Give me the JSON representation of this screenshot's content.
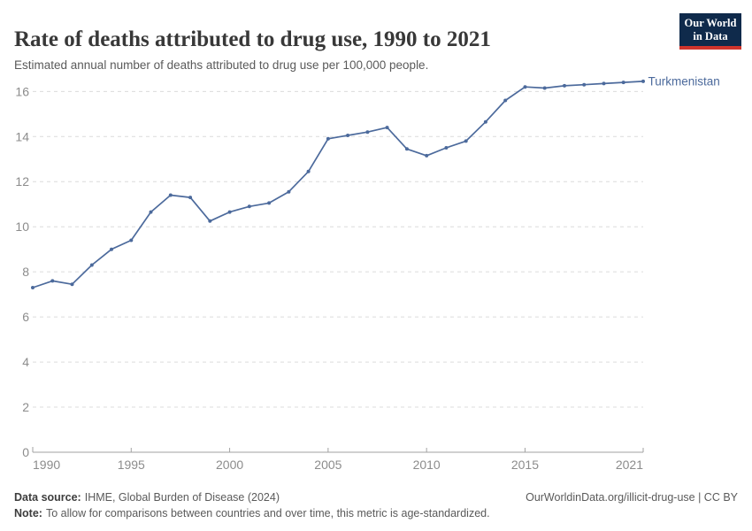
{
  "header": {
    "title": "Rate of deaths attributed to drug use, 1990 to 2021",
    "subtitle": "Estimated annual number of deaths attributed to drug use per 100,000 people.",
    "logo_line1": "Our World",
    "logo_line2": "in Data"
  },
  "chart_data": {
    "type": "line",
    "title": "Rate of deaths attributed to drug use, 1990 to 2021",
    "ylabel": "Deaths per 100,000 people",
    "xlim": [
      1990,
      2021
    ],
    "ylim": [
      0,
      16
    ],
    "yticks": [
      0,
      2,
      4,
      6,
      8,
      10,
      12,
      14,
      16
    ],
    "xticks": [
      1990,
      1995,
      2000,
      2005,
      2010,
      2015,
      2021
    ],
    "grid": "horizontal-dashed",
    "legend_position": "end-of-line-label",
    "series": [
      {
        "name": "Turkmenistan",
        "color": "#4c6a9c",
        "x": [
          1990,
          1991,
          1992,
          1993,
          1994,
          1995,
          1996,
          1997,
          1998,
          1999,
          2000,
          2001,
          2002,
          2003,
          2004,
          2005,
          2006,
          2007,
          2008,
          2009,
          2010,
          2011,
          2012,
          2013,
          2014,
          2015,
          2016,
          2017,
          2018,
          2019,
          2020,
          2021
        ],
        "values": [
          7.3,
          7.6,
          7.45,
          8.3,
          9.0,
          9.4,
          10.65,
          11.4,
          11.3,
          10.25,
          10.65,
          10.9,
          11.05,
          11.55,
          12.45,
          13.9,
          14.05,
          14.2,
          14.4,
          13.45,
          13.15,
          13.5,
          13.8,
          14.65,
          15.6,
          16.2,
          16.15,
          16.25,
          16.3,
          16.35,
          16.4,
          16.45
        ]
      }
    ]
  },
  "colors": {
    "accent": "#4c6a9c",
    "grid": "#dcdcdc",
    "axis": "#a2a2a2",
    "tick_label": "#8c8c8c",
    "logo_bg": "#0f2a4b",
    "logo_red": "#d0342c"
  },
  "footer": {
    "datasource_label": "Data source:",
    "datasource_text": "IHME, Global Burden of Disease (2024)",
    "note_label": "Note:",
    "note_text": "To allow for comparisons between countries and over time, this metric is age-standardized.",
    "license": "OurWorldinData.org/illicit-drug-use | CC BY"
  }
}
